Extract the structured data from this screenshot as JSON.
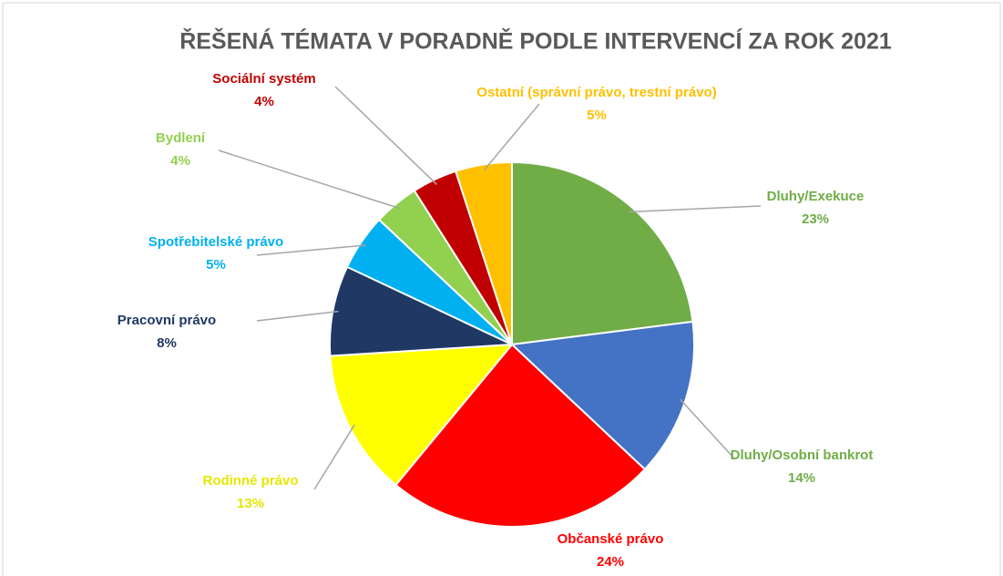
{
  "chart_data": {
    "type": "pie",
    "title": "ŘEŠENÁ TÉMATA V PORADNĚ PODLE INTERVENCÍ ZA ROK 2021",
    "categories": [
      "Dluhy/Exekuce",
      "Dluhy/Osobní bankrot",
      "Občanské právo",
      "Rodinné právo",
      "Pracovní právo",
      "Spotřebitelské právo",
      "Bydlení",
      "Sociální systém",
      "Ostatní (správní právo, trestní právo)"
    ],
    "values": [
      23,
      14,
      24,
      13,
      8,
      5,
      4,
      4,
      5
    ],
    "value_labels": [
      "23%",
      "14%",
      "24%",
      "13%",
      "8%",
      "5%",
      "4%",
      "4%",
      "5%"
    ],
    "colors": [
      "#70ad47",
      "#4472c4",
      "#ff0000",
      "#ffff00",
      "#203864",
      "#00b0f0",
      "#92d050",
      "#c00000",
      "#ffc000"
    ],
    "label_colors": [
      "#70ad47",
      "#70ad47",
      "#ff0000",
      "#e6e600",
      "#203864",
      "#00b0f0",
      "#92d050",
      "#c00000",
      "#ffc000"
    ]
  }
}
